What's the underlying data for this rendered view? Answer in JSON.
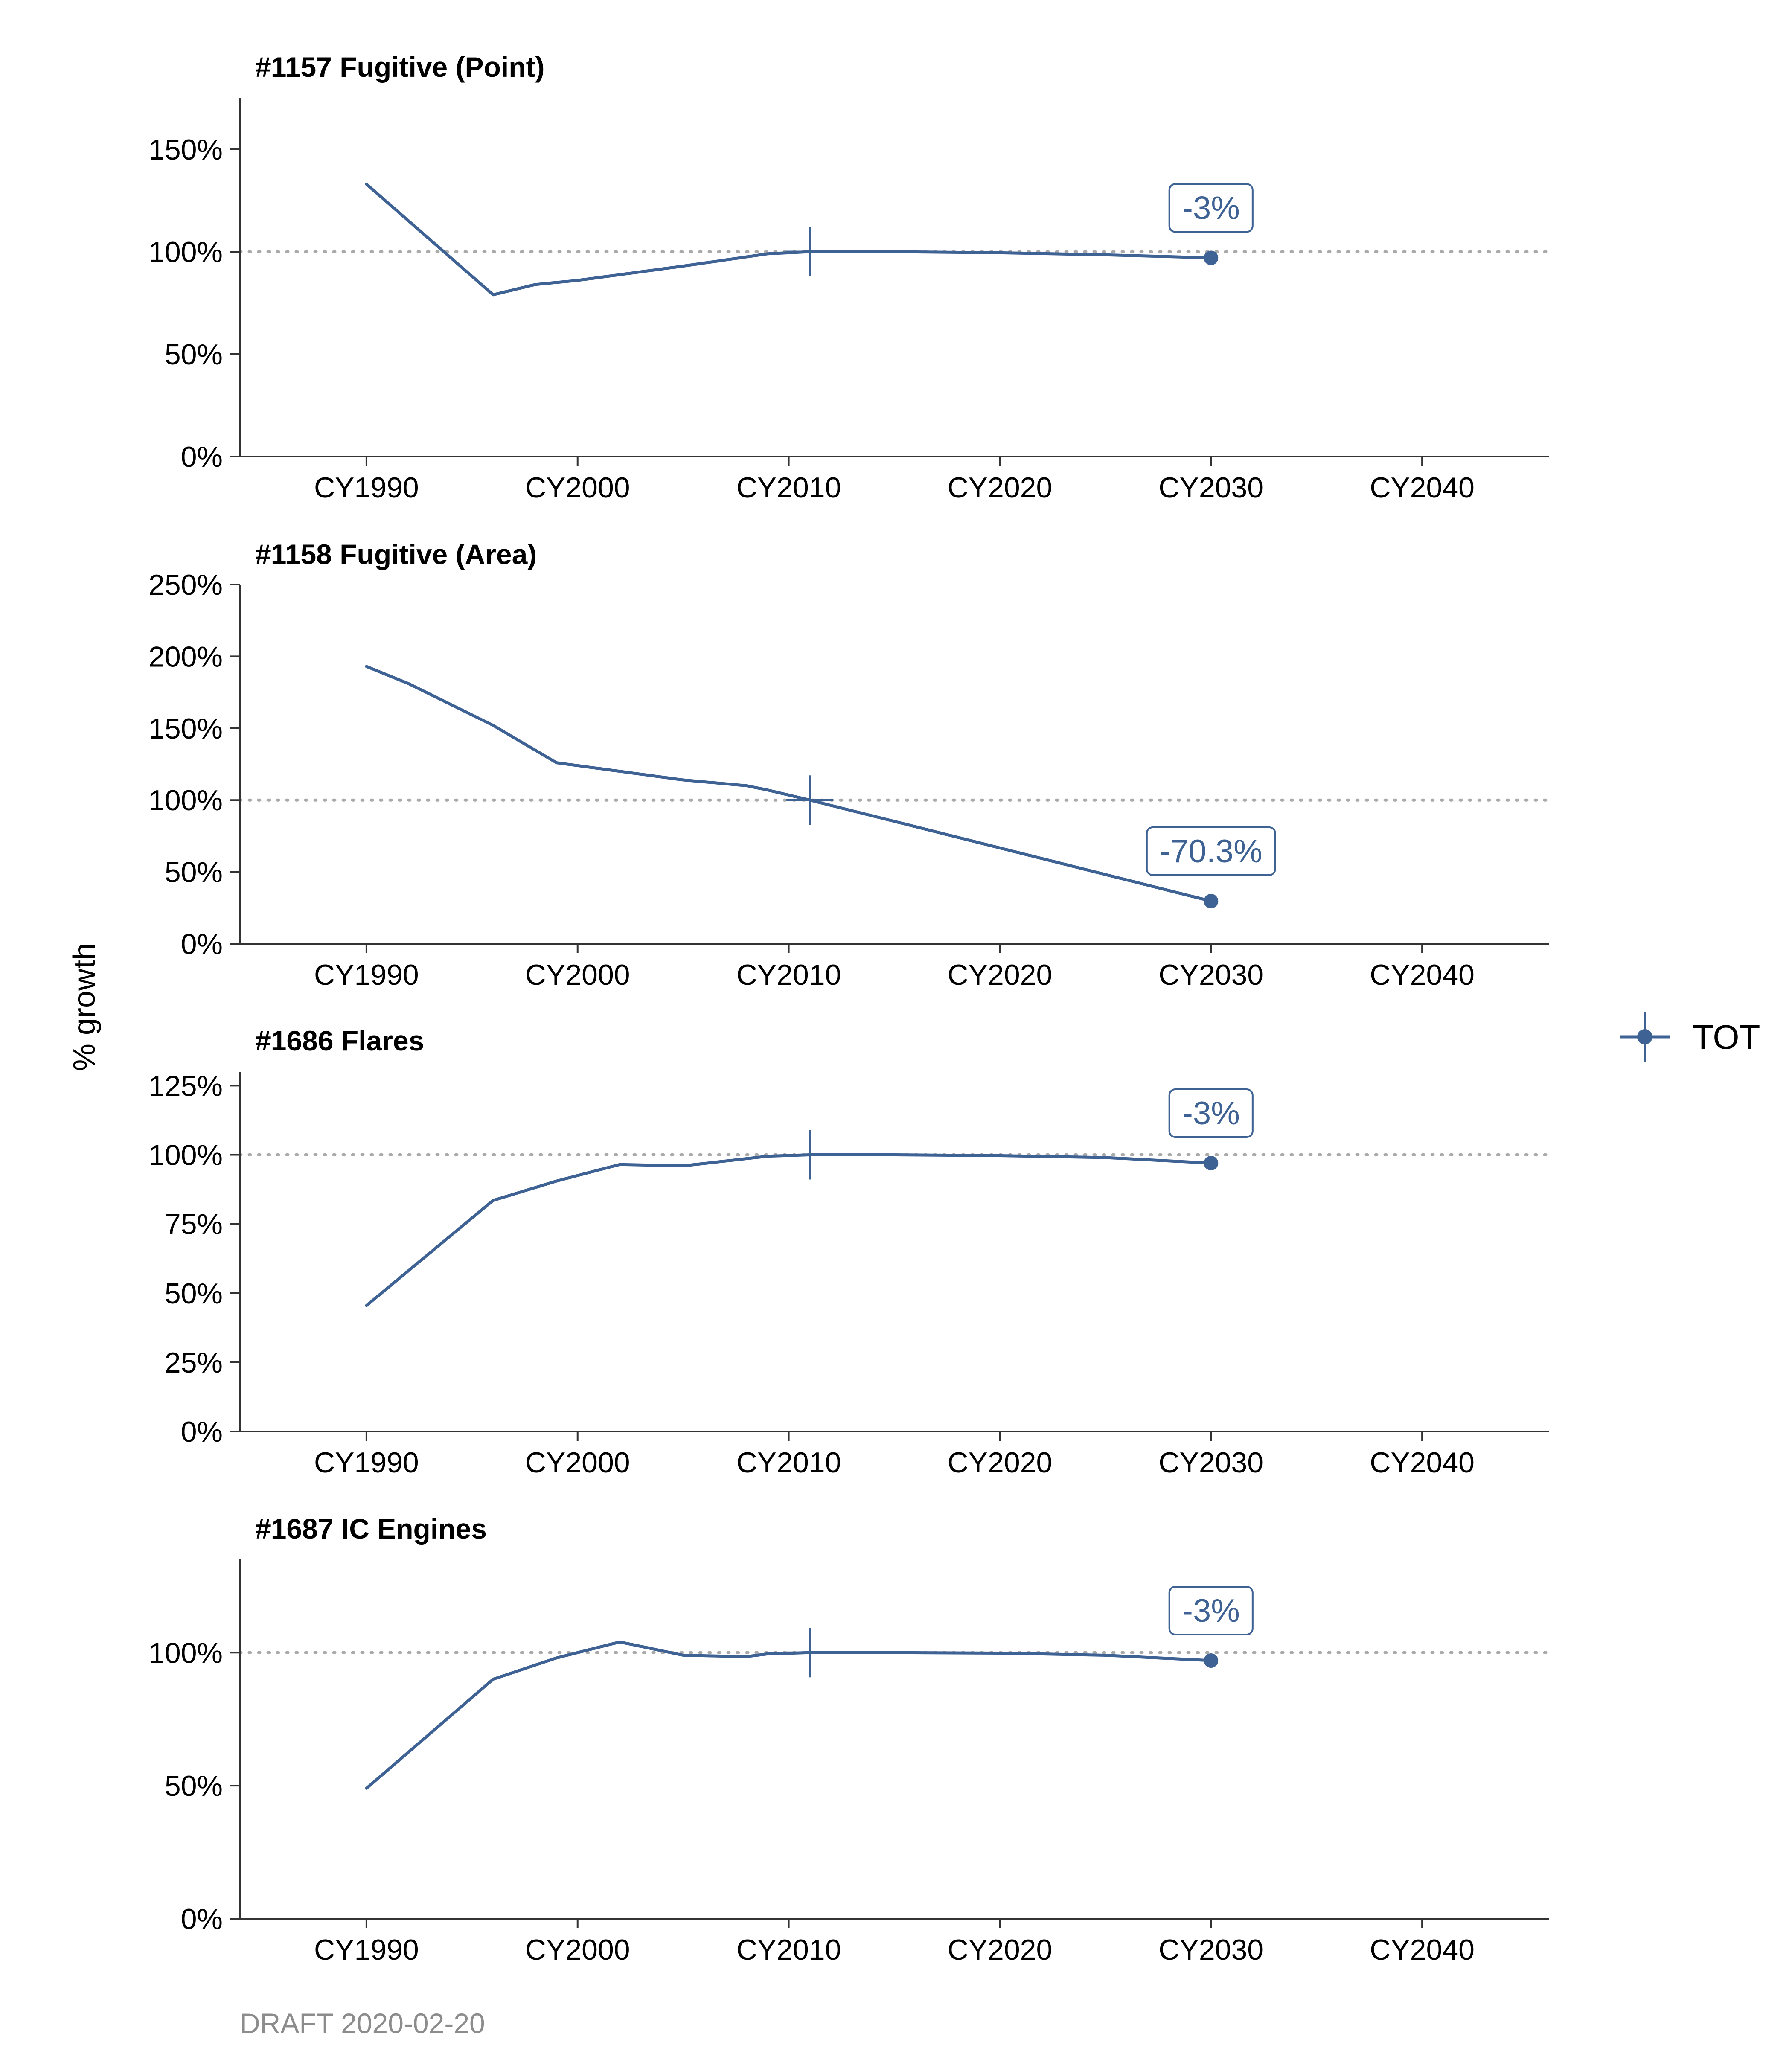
{
  "chart_data": {
    "type": "line",
    "ylabel": "% growth",
    "note": "DRAFT 2020-02-20",
    "legend": {
      "label": "TOT",
      "position": "right"
    },
    "x_ticks": [
      1990,
      2000,
      2010,
      2020,
      2030,
      2040
    ],
    "x_tick_labels": [
      "CY1990",
      "CY2000",
      "CY2010",
      "CY2020",
      "CY2030",
      "CY2040"
    ],
    "xlim": [
      1984,
      2046
    ],
    "reference_year": 2011,
    "reference_line_y": 1.0,
    "end_year": 2030,
    "colors": {
      "series": "#3f6294",
      "axis": "#333333",
      "reference": "#aaaaaa",
      "note": "#8c8c8c"
    },
    "panels": [
      {
        "title": "#1157 Fugitive (Point)",
        "ylim": [
          0,
          1.75
        ],
        "y_ticks": [
          0,
          0.5,
          1.0,
          1.5
        ],
        "y_tick_labels": [
          "0%",
          "50%",
          "100%",
          "150%"
        ],
        "series": [
          {
            "name": "TOT",
            "x": [
              1990,
              1996,
              1998,
              2000,
              2005,
              2009,
              2011,
              2015,
              2020,
              2025,
              2030
            ],
            "y": [
              1.33,
              0.79,
              0.84,
              0.86,
              0.93,
              0.99,
              1.0,
              1.0,
              0.995,
              0.985,
              0.97
            ]
          }
        ],
        "callout": "-3%"
      },
      {
        "title": "#1158 Fugitive (Area)",
        "ylim": [
          0,
          2.5
        ],
        "y_ticks": [
          0,
          0.5,
          1.0,
          1.5,
          2.0,
          2.5
        ],
        "y_tick_labels": [
          "0%",
          "50%",
          "100%",
          "150%",
          "200%",
          "250%"
        ],
        "series": [
          {
            "name": "TOT",
            "x": [
              1990,
              1992,
              1996,
              1999,
              2005,
              2008,
              2009,
              2011,
              2030
            ],
            "y": [
              1.93,
              1.81,
              1.52,
              1.26,
              1.14,
              1.1,
              1.07,
              1.0,
              0.297
            ]
          }
        ],
        "callout": "-70.3%"
      },
      {
        "title": "#1686 Flares",
        "ylim": [
          0,
          1.3
        ],
        "y_ticks": [
          0,
          0.25,
          0.5,
          0.75,
          1.0,
          1.25
        ],
        "y_tick_labels": [
          "0%",
          "25%",
          "50%",
          "75%",
          "100%",
          "125%"
        ],
        "series": [
          {
            "name": "TOT",
            "x": [
              1990,
              1996,
              1999,
              2002,
              2005,
              2009,
              2011,
              2015,
              2020,
              2025,
              2030
            ],
            "y": [
              0.455,
              0.835,
              0.905,
              0.965,
              0.96,
              0.995,
              1.0,
              1.0,
              0.997,
              0.99,
              0.97
            ]
          }
        ],
        "callout": "-3%"
      },
      {
        "title": "#1687 IC Engines",
        "ylim": [
          0,
          1.35
        ],
        "y_ticks": [
          0,
          0.5,
          1.0
        ],
        "y_tick_labels": [
          "0%",
          "50%",
          "100%"
        ],
        "series": [
          {
            "name": "TOT",
            "x": [
              1990,
              1996,
              1999,
              2002,
              2005,
              2008,
              2009,
              2011,
              2015,
              2020,
              2025,
              2030
            ],
            "y": [
              0.49,
              0.9,
              0.98,
              1.04,
              0.99,
              0.985,
              0.995,
              1.0,
              1.0,
              0.998,
              0.99,
              0.97
            ]
          }
        ],
        "callout": "-3%"
      }
    ]
  }
}
